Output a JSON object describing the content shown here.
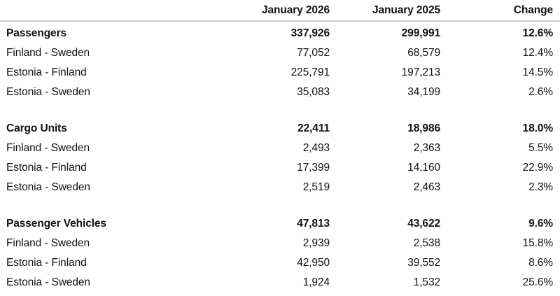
{
  "chart_data": {
    "type": "table",
    "columns": [
      "",
      "January 2026",
      "January 2025",
      "Change"
    ],
    "sections": [
      {
        "name": "Passengers",
        "rows": [
          {
            "label": "Passengers",
            "bold": true,
            "values": [
              "337,926",
              "299,991",
              "12.6%"
            ]
          },
          {
            "label": "Finland - Sweden",
            "bold": false,
            "values": [
              "77,052",
              "68,579",
              "12.4%"
            ]
          },
          {
            "label": "Estonia - Finland",
            "bold": false,
            "values": [
              "225,791",
              "197,213",
              "14.5%"
            ]
          },
          {
            "label": "Estonia - Sweden",
            "bold": false,
            "values": [
              "35,083",
              "34,199",
              "2.6%"
            ]
          }
        ]
      },
      {
        "name": "Cargo Units",
        "rows": [
          {
            "label": "Cargo Units",
            "bold": true,
            "values": [
              "22,411",
              "18,986",
              "18.0%"
            ]
          },
          {
            "label": "Finland - Sweden",
            "bold": false,
            "values": [
              "2,493",
              "2,363",
              "5.5%"
            ]
          },
          {
            "label": "Estonia - Finland",
            "bold": false,
            "values": [
              "17,399",
              "14,160",
              "22.9%"
            ]
          },
          {
            "label": "Estonia - Sweden",
            "bold": false,
            "values": [
              "2,519",
              "2,463",
              "2.3%"
            ]
          }
        ]
      },
      {
        "name": "Passenger Vehicles",
        "rows": [
          {
            "label": "Passenger Vehicles",
            "bold": true,
            "values": [
              "47,813",
              "43,622",
              "9.6%"
            ]
          },
          {
            "label": "Finland - Sweden",
            "bold": false,
            "values": [
              "2,939",
              "2,538",
              "15.8%"
            ]
          },
          {
            "label": "Estonia - Finland",
            "bold": false,
            "values": [
              "42,950",
              "39,552",
              "8.6%"
            ]
          },
          {
            "label": "Estonia - Sweden",
            "bold": false,
            "values": [
              "1,924",
              "1,532",
              "25.6%"
            ]
          }
        ]
      }
    ],
    "layout": {
      "legend": "none",
      "grid": "header-divider-only"
    },
    "colors": {
      "text": "#111111",
      "divider": "#cccccc",
      "background": "#ffffff"
    }
  }
}
